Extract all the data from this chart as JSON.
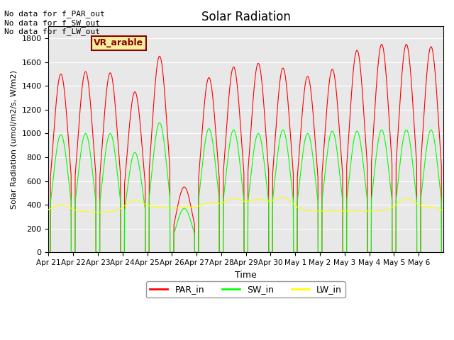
{
  "title": "Solar Radiation",
  "ylabel": "Solar Radiation (umol/m2/s, W/m2)",
  "xlabel": "Time",
  "ylim": [
    0,
    1900
  ],
  "yticks": [
    0,
    200,
    400,
    600,
    800,
    1000,
    1200,
    1400,
    1600,
    1800
  ],
  "background_color": "#e8e8e8",
  "annotations": [
    "No data for f_PAR_out",
    "No data for f_SW_out",
    "No data for f_LW_out"
  ],
  "vr_label": "VR_arable",
  "legend_labels": [
    "PAR_in",
    "SW_in",
    "LW_in"
  ],
  "legend_colors": [
    "red",
    "lime",
    "yellow"
  ],
  "x_tick_labels": [
    "Apr 21",
    "Apr 22",
    "Apr 23",
    "Apr 24",
    "Apr 25",
    "Apr 26",
    "Apr 27",
    "Apr 28",
    "Apr 29",
    "Apr 30",
    "May 1",
    "May 2",
    "May 3",
    "May 4",
    "May 5",
    "May 6"
  ],
  "n_days": 16,
  "par_peaks": [
    1500,
    1520,
    1510,
    1350,
    1650,
    550,
    1470,
    1560,
    1590,
    1550,
    1480,
    1540,
    1700,
    1750,
    1750,
    1730
  ],
  "sw_peaks": [
    990,
    1000,
    1000,
    840,
    1090,
    370,
    1040,
    1030,
    1000,
    1030,
    1000,
    1020,
    1020,
    1030,
    1030,
    1030
  ],
  "lw_base": 330,
  "lw_peaks": [
    400,
    340,
    340,
    440,
    380,
    380,
    410,
    450,
    440,
    460,
    350,
    350,
    350,
    350,
    450,
    380
  ]
}
